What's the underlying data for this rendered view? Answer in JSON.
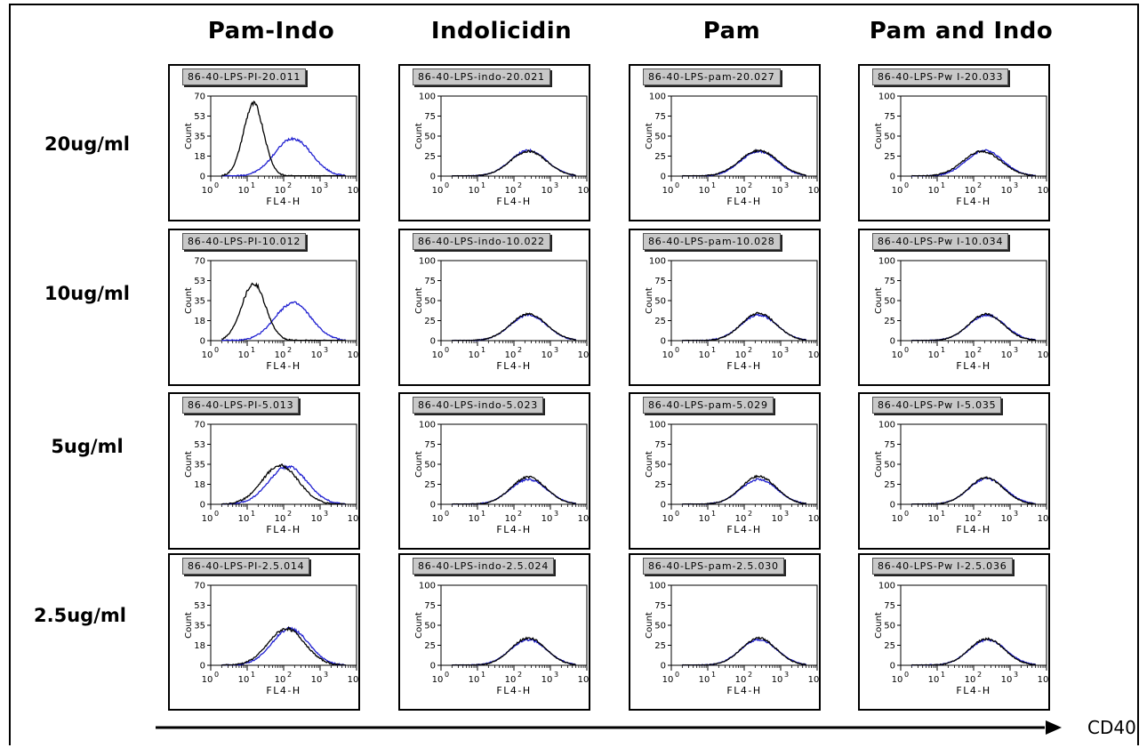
{
  "column_headers": [
    "Pam-Indo",
    "Indolicidin",
    "Pam",
    "Pam and Indo"
  ],
  "row_labels": [
    "20ug/ml",
    "10ug/ml",
    "5ug/ml",
    "2.5ug/ml"
  ],
  "x_axis_arrow_label": "CD40",
  "colors": {
    "overlay": "#1f1fd0",
    "control": "#000000"
  },
  "chart_data": [
    {
      "type": "histogram",
      "row": "20ug/ml",
      "column": "Pam-Indo",
      "file": "86-40-LPS-PI-20.011",
      "xlabel": "FL4-H",
      "ylabel": "Count",
      "xscale": "log",
      "xlim": [
        1,
        10000
      ],
      "ylim": [
        0,
        70
      ],
      "yticks": [
        "0",
        "18",
        "35",
        "53",
        "70"
      ],
      "series": [
        {
          "color": "black",
          "peak_x": 15,
          "peak_count": 63,
          "width": 0.28
        },
        {
          "color": "blue",
          "peak_x": 180,
          "peak_count": 33,
          "width": 0.5
        }
      ]
    },
    {
      "type": "histogram",
      "row": "20ug/ml",
      "column": "Indolicidin",
      "file": "86-40-LPS-indo-20.021",
      "xlabel": "FL4-H",
      "ylabel": "Count",
      "xscale": "log",
      "xlim": [
        1,
        10000
      ],
      "ylim": [
        0,
        100
      ],
      "yticks": [
        "0",
        "25",
        "50",
        "75",
        "100"
      ],
      "series": [
        {
          "color": "black",
          "peak_x": 250,
          "peak_count": 31,
          "width": 0.5
        },
        {
          "color": "blue",
          "peak_x": 250,
          "peak_count": 32,
          "width": 0.5
        }
      ]
    },
    {
      "type": "histogram",
      "row": "20ug/ml",
      "column": "Pam",
      "file": "86-40-LPS-pam-20.027",
      "xlabel": "FL4-H",
      "ylabel": "Count",
      "xscale": "log",
      "xlim": [
        1,
        10000
      ],
      "ylim": [
        0,
        100
      ],
      "yticks": [
        "0",
        "25",
        "50",
        "75",
        "100"
      ],
      "series": [
        {
          "color": "black",
          "peak_x": 250,
          "peak_count": 32,
          "width": 0.52
        },
        {
          "color": "blue",
          "peak_x": 250,
          "peak_count": 31,
          "width": 0.5
        }
      ]
    },
    {
      "type": "histogram",
      "row": "20ug/ml",
      "column": "Pam and Indo",
      "file": "86-40-LPS-Pw I-20.033",
      "xlabel": "FL4-H",
      "ylabel": "Count",
      "xscale": "log",
      "xlim": [
        1,
        10000
      ],
      "ylim": [
        0,
        100
      ],
      "yticks": [
        "0",
        "25",
        "50",
        "75",
        "100"
      ],
      "series": [
        {
          "color": "black",
          "peak_x": 170,
          "peak_count": 31,
          "width": 0.52
        },
        {
          "color": "blue",
          "peak_x": 200,
          "peak_count": 32,
          "width": 0.5
        }
      ]
    },
    {
      "type": "histogram",
      "row": "10ug/ml",
      "column": "Pam-Indo",
      "file": "86-40-LPS-PI-10.012",
      "xlabel": "FL4-H",
      "ylabel": "Count",
      "xscale": "log",
      "xlim": [
        1,
        10000
      ],
      "ylim": [
        0,
        70
      ],
      "yticks": [
        "0",
        "18",
        "35",
        "53",
        "70"
      ],
      "series": [
        {
          "color": "black",
          "peak_x": 15,
          "peak_count": 50,
          "width": 0.33
        },
        {
          "color": "blue",
          "peak_x": 180,
          "peak_count": 33,
          "width": 0.5
        }
      ]
    },
    {
      "type": "histogram",
      "row": "10ug/ml",
      "column": "Indolicidin",
      "file": "86-40-LPS-indo-10.022",
      "xlabel": "FL4-H",
      "ylabel": "Count",
      "xscale": "log",
      "xlim": [
        1,
        10000
      ],
      "ylim": [
        0,
        100
      ],
      "yticks": [
        "0",
        "25",
        "50",
        "75",
        "100"
      ],
      "series": [
        {
          "color": "black",
          "peak_x": 250,
          "peak_count": 33,
          "width": 0.5
        },
        {
          "color": "blue",
          "peak_x": 250,
          "peak_count": 32,
          "width": 0.5
        }
      ]
    },
    {
      "type": "histogram",
      "row": "10ug/ml",
      "column": "Pam",
      "file": "86-40-LPS-pam-10.028",
      "xlabel": "FL4-H",
      "ylabel": "Count",
      "xscale": "log",
      "xlim": [
        1,
        10000
      ],
      "ylim": [
        0,
        100
      ],
      "yticks": [
        "0",
        "25",
        "50",
        "75",
        "100"
      ],
      "series": [
        {
          "color": "black",
          "peak_x": 250,
          "peak_count": 34,
          "width": 0.48
        },
        {
          "color": "blue",
          "peak_x": 250,
          "peak_count": 32,
          "width": 0.5
        }
      ]
    },
    {
      "type": "histogram",
      "row": "10ug/ml",
      "column": "Pam and Indo",
      "file": "86-40-LPS-Pw I-10.034",
      "xlabel": "FL4-H",
      "ylabel": "Count",
      "xscale": "log",
      "xlim": [
        1,
        10000
      ],
      "ylim": [
        0,
        100
      ],
      "yticks": [
        "0",
        "25",
        "50",
        "75",
        "100"
      ],
      "series": [
        {
          "color": "black",
          "peak_x": 220,
          "peak_count": 33,
          "width": 0.48
        },
        {
          "color": "blue",
          "peak_x": 230,
          "peak_count": 32,
          "width": 0.5
        }
      ]
    },
    {
      "type": "histogram",
      "row": "5ug/ml",
      "column": "Pam-Indo",
      "file": "86-40-LPS-PI-5.013",
      "xlabel": "FL4-H",
      "ylabel": "Count",
      "xscale": "log",
      "xlim": [
        1,
        10000
      ],
      "ylim": [
        0,
        70
      ],
      "yticks": [
        "0",
        "18",
        "35",
        "53",
        "70"
      ],
      "series": [
        {
          "color": "black",
          "peak_x": 80,
          "peak_count": 34,
          "width": 0.5
        },
        {
          "color": "blue",
          "peak_x": 130,
          "peak_count": 33,
          "width": 0.52
        }
      ]
    },
    {
      "type": "histogram",
      "row": "5ug/ml",
      "column": "Indolicidin",
      "file": "86-40-LPS-indo-5.023",
      "xlabel": "FL4-H",
      "ylabel": "Count",
      "xscale": "log",
      "xlim": [
        1,
        10000
      ],
      "ylim": [
        0,
        100
      ],
      "yticks": [
        "0",
        "25",
        "50",
        "75",
        "100"
      ],
      "series": [
        {
          "color": "black",
          "peak_x": 250,
          "peak_count": 34,
          "width": 0.48
        },
        {
          "color": "blue",
          "peak_x": 250,
          "peak_count": 31,
          "width": 0.5
        }
      ]
    },
    {
      "type": "histogram",
      "row": "5ug/ml",
      "column": "Pam",
      "file": "86-40-LPS-pam-5.029",
      "xlabel": "FL4-H",
      "ylabel": "Count",
      "xscale": "log",
      "xlim": [
        1,
        10000
      ],
      "ylim": [
        0,
        100
      ],
      "yticks": [
        "0",
        "25",
        "50",
        "75",
        "100"
      ],
      "series": [
        {
          "color": "black",
          "peak_x": 250,
          "peak_count": 35,
          "width": 0.48
        },
        {
          "color": "blue",
          "peak_x": 250,
          "peak_count": 31,
          "width": 0.5
        }
      ]
    },
    {
      "type": "histogram",
      "row": "5ug/ml",
      "column": "Pam and Indo",
      "file": "86-40-LPS-Pw I-5.035",
      "xlabel": "FL4-H",
      "ylabel": "Count",
      "xscale": "log",
      "xlim": [
        1,
        10000
      ],
      "ylim": [
        0,
        100
      ],
      "yticks": [
        "0",
        "25",
        "50",
        "75",
        "100"
      ],
      "series": [
        {
          "color": "black",
          "peak_x": 220,
          "peak_count": 33,
          "width": 0.48
        },
        {
          "color": "blue",
          "peak_x": 230,
          "peak_count": 32,
          "width": 0.5
        }
      ]
    },
    {
      "type": "histogram",
      "row": "2.5ug/ml",
      "column": "Pam-Indo",
      "file": "86-40-LPS-PI-2.5.014",
      "xlabel": "FL4-H",
      "ylabel": "Count",
      "xscale": "log",
      "xlim": [
        1,
        10000
      ],
      "ylim": [
        0,
        70
      ],
      "yticks": [
        "0",
        "18",
        "35",
        "53",
        "70"
      ],
      "series": [
        {
          "color": "black",
          "peak_x": 120,
          "peak_count": 32,
          "width": 0.5
        },
        {
          "color": "blue",
          "peak_x": 150,
          "peak_count": 32,
          "width": 0.5
        }
      ]
    },
    {
      "type": "histogram",
      "row": "2.5ug/ml",
      "column": "Indolicidin",
      "file": "86-40-LPS-indo-2.5.024",
      "xlabel": "FL4-H",
      "ylabel": "Count",
      "xscale": "log",
      "xlim": [
        1,
        10000
      ],
      "ylim": [
        0,
        100
      ],
      "yticks": [
        "0",
        "25",
        "50",
        "75",
        "100"
      ],
      "series": [
        {
          "color": "black",
          "peak_x": 250,
          "peak_count": 34,
          "width": 0.48
        },
        {
          "color": "blue",
          "peak_x": 250,
          "peak_count": 32,
          "width": 0.5
        }
      ]
    },
    {
      "type": "histogram",
      "row": "2.5ug/ml",
      "column": "Pam",
      "file": "86-40-LPS-pam-2.5.030",
      "xlabel": "FL4-H",
      "ylabel": "Count",
      "xscale": "log",
      "xlim": [
        1,
        10000
      ],
      "ylim": [
        0,
        100
      ],
      "yticks": [
        "0",
        "25",
        "50",
        "75",
        "100"
      ],
      "series": [
        {
          "color": "black",
          "peak_x": 250,
          "peak_count": 34,
          "width": 0.48
        },
        {
          "color": "blue",
          "peak_x": 250,
          "peak_count": 32,
          "width": 0.5
        }
      ]
    },
    {
      "type": "histogram",
      "row": "2.5ug/ml",
      "column": "Pam and Indo",
      "file": "86-40-LPS-Pw I-2.5.036",
      "xlabel": "FL4-H",
      "ylabel": "Count",
      "xscale": "log",
      "xlim": [
        1,
        10000
      ],
      "ylim": [
        0,
        100
      ],
      "yticks": [
        "0",
        "25",
        "50",
        "75",
        "100"
      ],
      "series": [
        {
          "color": "black",
          "peak_x": 230,
          "peak_count": 33,
          "width": 0.48
        },
        {
          "color": "blue",
          "peak_x": 240,
          "peak_count": 32,
          "width": 0.5
        }
      ]
    }
  ]
}
